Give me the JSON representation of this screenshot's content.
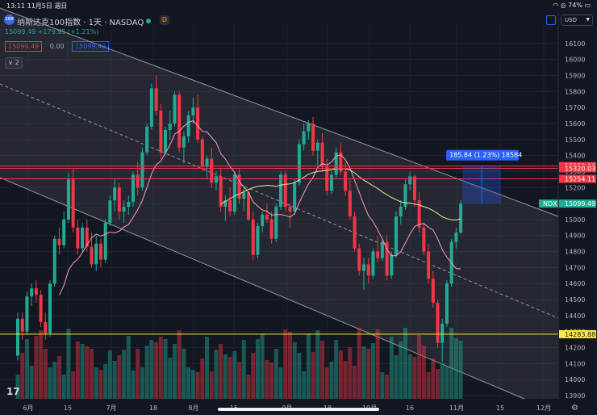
{
  "status_bar": {
    "time_date": "13:11  11月5日 週日",
    "battery": "74%"
  },
  "header": {
    "logo_text": "100",
    "title": "纳斯达克100指数 · 1天 · NASDAQ",
    "badge": "D",
    "currency": "USD",
    "last_price": "15099.49",
    "change": "+179.95 (+1.21%)",
    "bid": "15099.49",
    "spread": "0.00",
    "ask": "15099.49",
    "collapse_label": "2"
  },
  "colors": {
    "up": "#22ab94",
    "down": "#f23645",
    "background": "#131722",
    "ma_short": "#ff9dbb",
    "ma_long": "#f0e68c",
    "hline_red": "#f23645",
    "hline_yellow": "#ffeb3b",
    "measure": "#2962ff"
  },
  "chart_data": {
    "type": "candlestick",
    "symbol": "NDX",
    "x_ticks": [
      "6月",
      "15",
      "7月",
      "18",
      "8月",
      "15",
      "9月",
      "18",
      "10月",
      "16",
      "11月",
      "15",
      "12月"
    ],
    "y_ticks": [
      13900,
      14000,
      14100,
      14200,
      14300,
      14400,
      14500,
      14600,
      14700,
      14800,
      14900,
      15000,
      15100,
      15200,
      15300,
      15400,
      15500,
      15600,
      15700,
      15800,
      15900,
      16000,
      16100
    ],
    "ylim": [
      13880,
      16220
    ],
    "candles": [
      [
        14150,
        14420,
        14120,
        14380
      ],
      [
        14380,
        14420,
        14250,
        14300
      ],
      [
        14300,
        14550,
        14280,
        14520
      ],
      [
        14520,
        14600,
        14460,
        14570
      ],
      [
        14570,
        14620,
        14480,
        14530
      ],
      [
        14530,
        14560,
        14330,
        14360
      ],
      [
        14360,
        14420,
        14250,
        14290
      ],
      [
        14290,
        14620,
        14270,
        14600
      ],
      [
        14600,
        14900,
        14580,
        14880
      ],
      [
        14880,
        14950,
        14780,
        14840
      ],
      [
        14840,
        15050,
        14820,
        15000
      ],
      [
        15000,
        15290,
        14980,
        15250
      ],
      [
        15250,
        15320,
        14920,
        14950
      ],
      [
        14950,
        15000,
        14780,
        14820
      ],
      [
        14820,
        14980,
        14800,
        14950
      ],
      [
        14950,
        15000,
        14800,
        14830
      ],
      [
        14830,
        14920,
        14700,
        14720
      ],
      [
        14720,
        14900,
        14680,
        14850
      ],
      [
        14850,
        14880,
        14700,
        14750
      ],
      [
        14750,
        15000,
        14730,
        14980
      ],
      [
        14980,
        15150,
        14960,
        15120
      ],
      [
        15120,
        15250,
        15050,
        15200
      ],
      [
        15200,
        15230,
        15000,
        15050
      ],
      [
        15050,
        15120,
        14980,
        15080
      ],
      [
        15080,
        15150,
        15030,
        15110
      ],
      [
        15110,
        15300,
        15080,
        15280
      ],
      [
        15280,
        15360,
        15150,
        15200
      ],
      [
        15200,
        15450,
        15180,
        15420
      ],
      [
        15420,
        15600,
        15400,
        15580
      ],
      [
        15580,
        15850,
        15560,
        15820
      ],
      [
        15820,
        15900,
        15650,
        15680
      ],
      [
        15680,
        15720,
        15380,
        15420
      ],
      [
        15420,
        15580,
        15400,
        15560
      ],
      [
        15560,
        15680,
        15500,
        15600
      ],
      [
        15600,
        15800,
        15580,
        15780
      ],
      [
        15780,
        15800,
        15420,
        15450
      ],
      [
        15450,
        15550,
        15350,
        15520
      ],
      [
        15520,
        15680,
        15480,
        15650
      ],
      [
        15650,
        15760,
        15600,
        15700
      ],
      [
        15700,
        15780,
        15480,
        15500
      ],
      [
        15500,
        15520,
        15300,
        15330
      ],
      [
        15330,
        15400,
        15250,
        15380
      ],
      [
        15380,
        15450,
        15200,
        15230
      ],
      [
        15230,
        15300,
        15180,
        15270
      ],
      [
        15270,
        15320,
        15050,
        15080
      ],
      [
        15080,
        15150,
        14990,
        15120
      ],
      [
        15120,
        15200,
        15020,
        15050
      ],
      [
        15050,
        15300,
        15030,
        15280
      ],
      [
        15280,
        15320,
        15100,
        15130
      ],
      [
        15130,
        15200,
        15050,
        15170
      ],
      [
        15170,
        15180,
        14990,
        15000
      ],
      [
        15000,
        15050,
        14750,
        14780
      ],
      [
        14780,
        14980,
        14760,
        14960
      ],
      [
        14960,
        15050,
        14920,
        15030
      ],
      [
        15030,
        15100,
        14980,
        15000
      ],
      [
        15000,
        15050,
        14850,
        14880
      ],
      [
        14880,
        15100,
        14860,
        15080
      ],
      [
        15080,
        15300,
        15060,
        15280
      ],
      [
        15280,
        15300,
        15050,
        15080
      ],
      [
        15080,
        15100,
        14950,
        15050
      ],
      [
        15050,
        15250,
        15030,
        15230
      ],
      [
        15230,
        15500,
        15210,
        15470
      ],
      [
        15470,
        15600,
        15430,
        15550
      ],
      [
        15550,
        15620,
        15500,
        15600
      ],
      [
        15600,
        15640,
        15400,
        15430
      ],
      [
        15430,
        15500,
        15330,
        15480
      ],
      [
        15480,
        15540,
        15300,
        15330
      ],
      [
        15330,
        15380,
        15150,
        15180
      ],
      [
        15180,
        15300,
        15160,
        15280
      ],
      [
        15280,
        15450,
        15260,
        15420
      ],
      [
        15420,
        15480,
        15280,
        15300
      ],
      [
        15300,
        15360,
        15150,
        15180
      ],
      [
        15180,
        15250,
        15000,
        15020
      ],
      [
        15020,
        15050,
        14800,
        14820
      ],
      [
        14820,
        14850,
        14650,
        14680
      ],
      [
        14680,
        14760,
        14560,
        14720
      ],
      [
        14720,
        14760,
        14600,
        14650
      ],
      [
        14650,
        14820,
        14630,
        14800
      ],
      [
        14800,
        14900,
        14730,
        14760
      ],
      [
        14760,
        14880,
        14740,
        14860
      ],
      [
        14860,
        14900,
        14620,
        14650
      ],
      [
        14650,
        14800,
        14630,
        14780
      ],
      [
        14780,
        15050,
        14760,
        15020
      ],
      [
        15020,
        15120,
        14970,
        15080
      ],
      [
        15080,
        15250,
        15060,
        15220
      ],
      [
        15220,
        15300,
        15180,
        15270
      ],
      [
        15270,
        15280,
        15080,
        15120
      ],
      [
        15120,
        15170,
        14920,
        14950
      ],
      [
        14950,
        14980,
        14780,
        14800
      ],
      [
        14800,
        14850,
        14600,
        14630
      ],
      [
        14630,
        14680,
        14450,
        14480
      ],
      [
        14480,
        14500,
        14200,
        14230
      ],
      [
        14230,
        14380,
        14110,
        14350
      ],
      [
        14350,
        14620,
        14330,
        14600
      ],
      [
        14600,
        14880,
        14580,
        14860
      ],
      [
        14860,
        14950,
        14820,
        14919
      ],
      [
        14919,
        15120,
        14910,
        15099.49
      ]
    ],
    "price_tags": [
      {
        "label": "15333.98",
        "price": 15333.98,
        "style": "red"
      },
      {
        "label": "15320.03",
        "price": 15320.03,
        "style": "red"
      },
      {
        "label": "15254.11",
        "price": 15254.11,
        "style": "red"
      },
      {
        "label": "15099.49",
        "price": 15099.49,
        "style": "green",
        "symbol": "NDX"
      },
      {
        "label": "14283.88",
        "price": 14283.88,
        "style": "yellow"
      }
    ],
    "measure_label": "185.84 (1.23%) 18584"
  }
}
